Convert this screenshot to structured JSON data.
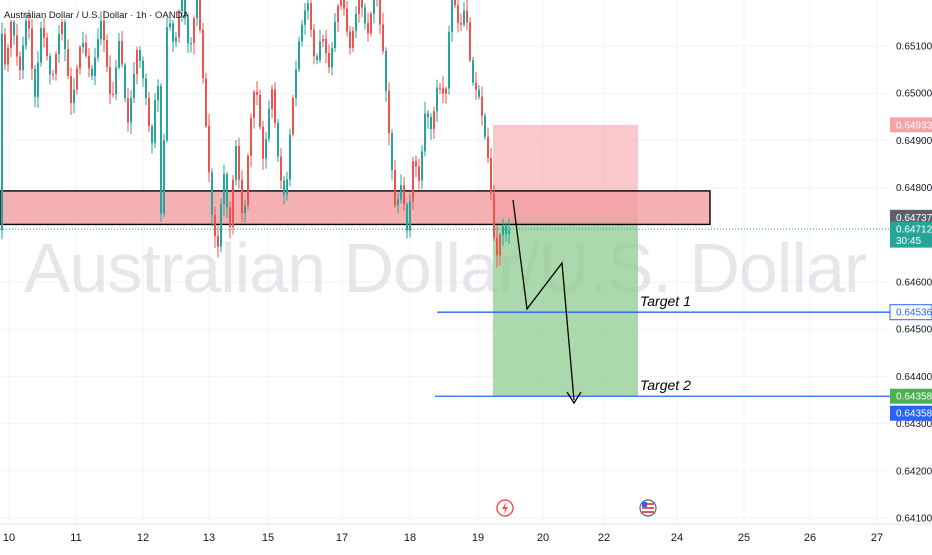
{
  "symbol_title": "Australian Dollar / U.S. Dollar · 1h · OANDA",
  "watermark": "Australian Dollar/U.S. Dollar",
  "chart_data": {
    "type": "candlestick",
    "symbol": "Australian Dollar / U.S. Dollar",
    "timeframe": "1h",
    "source": "OANDA",
    "ylim": [
      0.641,
      0.6525
    ],
    "y_ticks": [
      "0.65100",
      "0.65000",
      "0.64900",
      "0.64800",
      "0.64600",
      "0.64500",
      "0.64400",
      "0.64300",
      "0.64200",
      "0.64100"
    ],
    "x_ticks": [
      "10",
      "11",
      "12",
      "13",
      "15",
      "17",
      "18",
      "19",
      "20",
      "22",
      "24",
      "25",
      "26",
      "27"
    ],
    "colors": {
      "up": "#26a69a",
      "down": "#ef5350"
    },
    "resistance_zone": {
      "from": 0.64722,
      "to": 0.64793
    },
    "position": {
      "entry": 0.64737,
      "stop": 0.64933,
      "target": 0.64358
    },
    "targets": [
      {
        "label": "Target 1",
        "price": 0.64536
      },
      {
        "label": "Target 2",
        "price": 0.64358
      }
    ],
    "price_labels": [
      {
        "text": "0.64933",
        "price": 0.64933,
        "color": "#f7a1a8",
        "text_color": "#ffffff"
      },
      {
        "text": "0.64737",
        "price": 0.64737,
        "color": "#5d606b",
        "text_color": "#ffffff"
      },
      {
        "text": "0.64712",
        "price": 0.64712,
        "color": "#26a69a",
        "text_color": "#ffffff",
        "countdown": "30:45"
      },
      {
        "text": "0.64536",
        "price": 0.64536,
        "color": "#ffffff",
        "text_color": "#2962ff",
        "border": "#2962ff"
      },
      {
        "text": "0.64358",
        "price": 0.64358,
        "color": "#4caf50",
        "text_color": "#ffffff"
      },
      {
        "text": "0.64358",
        "price": 0.64358,
        "color": "#2962ff",
        "text_color": "#ffffff"
      }
    ],
    "event_icons": [
      "flash-event-icon",
      "us-flag-event-icon"
    ],
    "grid": true
  }
}
